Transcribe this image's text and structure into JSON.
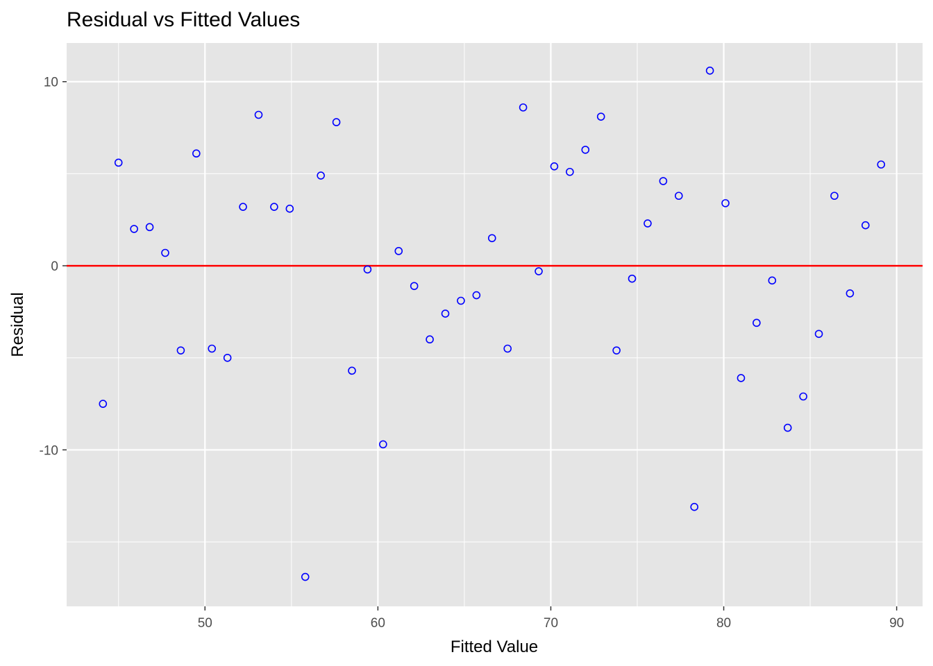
{
  "chart_data": {
    "type": "scatter",
    "title": "Residual vs Fitted Values",
    "xlabel": "Fitted Value",
    "ylabel": "Residual",
    "xlim": [
      42.0,
      91.5
    ],
    "ylim": [
      -18.5,
      12.1
    ],
    "x_ticks": [
      50,
      60,
      70,
      80,
      90
    ],
    "x_tick_labels": [
      "50",
      "60",
      "70",
      "80",
      "90"
    ],
    "y_ticks": [
      -10,
      0,
      10
    ],
    "y_tick_labels": [
      "-10",
      "0",
      "10"
    ],
    "grid": true,
    "reference_line": {
      "y": 0,
      "color": "#ff0000"
    },
    "point_color": "#0000ff",
    "background_color": "#e5e5e5",
    "points": [
      {
        "x": 44.1,
        "y": -7.5
      },
      {
        "x": 45.0,
        "y": 5.6
      },
      {
        "x": 45.9,
        "y": 2.0
      },
      {
        "x": 46.8,
        "y": 2.1
      },
      {
        "x": 47.7,
        "y": 0.7
      },
      {
        "x": 48.6,
        "y": -4.6
      },
      {
        "x": 49.5,
        "y": 6.1
      },
      {
        "x": 50.4,
        "y": -4.5
      },
      {
        "x": 51.3,
        "y": -5.0
      },
      {
        "x": 52.2,
        "y": 3.2
      },
      {
        "x": 53.1,
        "y": 8.2
      },
      {
        "x": 54.0,
        "y": 3.2
      },
      {
        "x": 54.9,
        "y": 3.1
      },
      {
        "x": 55.8,
        "y": -16.9
      },
      {
        "x": 56.7,
        "y": 4.9
      },
      {
        "x": 57.6,
        "y": 7.8
      },
      {
        "x": 58.5,
        "y": -5.7
      },
      {
        "x": 59.4,
        "y": -0.2
      },
      {
        "x": 60.3,
        "y": -9.7
      },
      {
        "x": 61.2,
        "y": 0.8
      },
      {
        "x": 62.1,
        "y": -1.1
      },
      {
        "x": 63.0,
        "y": -4.0
      },
      {
        "x": 63.9,
        "y": -2.6
      },
      {
        "x": 64.8,
        "y": -1.9
      },
      {
        "x": 65.7,
        "y": -1.6
      },
      {
        "x": 66.6,
        "y": 1.5
      },
      {
        "x": 67.5,
        "y": -4.5
      },
      {
        "x": 68.4,
        "y": 8.6
      },
      {
        "x": 69.3,
        "y": -0.3
      },
      {
        "x": 70.2,
        "y": 5.4
      },
      {
        "x": 71.1,
        "y": 5.1
      },
      {
        "x": 72.0,
        "y": 6.3
      },
      {
        "x": 72.9,
        "y": 8.1
      },
      {
        "x": 73.8,
        "y": -4.6
      },
      {
        "x": 74.7,
        "y": -0.7
      },
      {
        "x": 75.6,
        "y": 2.3
      },
      {
        "x": 76.5,
        "y": 4.6
      },
      {
        "x": 77.4,
        "y": 3.8
      },
      {
        "x": 78.3,
        "y": -13.1
      },
      {
        "x": 79.2,
        "y": 10.6
      },
      {
        "x": 80.1,
        "y": 3.4
      },
      {
        "x": 81.0,
        "y": -6.1
      },
      {
        "x": 81.9,
        "y": -3.1
      },
      {
        "x": 82.8,
        "y": -0.8
      },
      {
        "x": 83.7,
        "y": -8.8
      },
      {
        "x": 84.6,
        "y": -7.1
      },
      {
        "x": 85.5,
        "y": -3.7
      },
      {
        "x": 86.4,
        "y": 3.8
      },
      {
        "x": 87.3,
        "y": -1.5
      },
      {
        "x": 88.2,
        "y": 2.2
      },
      {
        "x": 89.1,
        "y": 5.5
      }
    ]
  }
}
